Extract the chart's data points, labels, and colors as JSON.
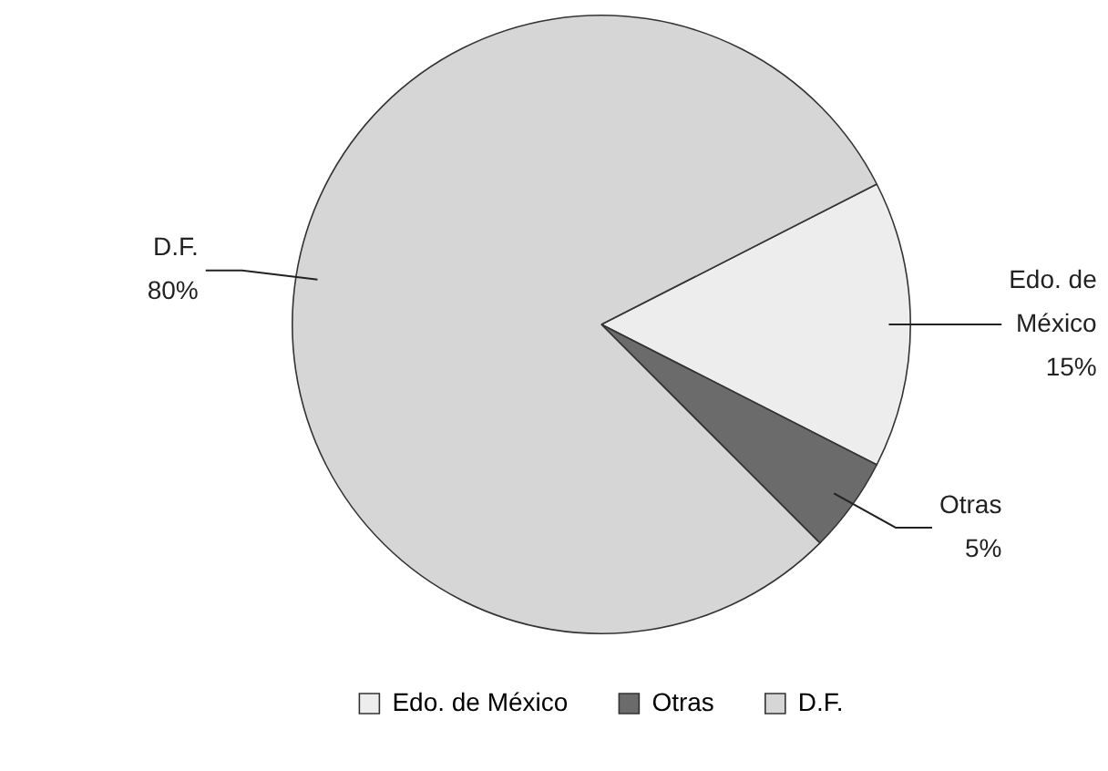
{
  "chart_data": {
    "type": "pie",
    "categories": [
      "Edo. de México",
      "Otras",
      "D.F."
    ],
    "values": [
      15,
      5,
      80
    ],
    "colors": [
      "#ededed",
      "#6b6b6b",
      "#d6d6d6"
    ],
    "value_labels": [
      "15%",
      "5%",
      "80%"
    ],
    "legend": "bottom"
  }
}
